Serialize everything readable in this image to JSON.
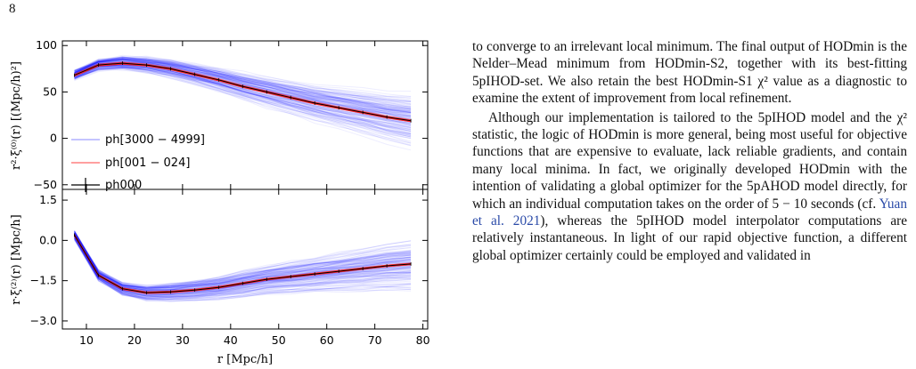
{
  "page": {
    "number": "8"
  },
  "figure": {
    "colors": {
      "mocks": "#0000ff",
      "fiducial": "#ff2020",
      "reference": "#000000"
    },
    "legend": [
      {
        "label": "ph[3000 − 4999]"
      },
      {
        "label": "ph[001 − 024]"
      },
      {
        "label": "ph000"
      }
    ],
    "chart_data": [
      {
        "type": "line",
        "ylabel": "r²·ξ⁽⁰⁾(r) [(Mpc/h)²]",
        "xlim": [
          5,
          81
        ],
        "ylim": [
          -55,
          105
        ],
        "yticks": [
          -50,
          0,
          50,
          100
        ],
        "x": [
          7.5,
          12.5,
          17.5,
          22.5,
          27.5,
          32.5,
          37.5,
          42.5,
          47.5,
          52.5,
          57.5,
          62.5,
          67.5,
          72.5,
          77.5
        ],
        "series": [
          {
            "name": "ph000",
            "values": [
              68,
              79,
              81,
              79,
              75,
              69,
              63,
              56,
              50,
              44,
              38,
              33,
              28,
              23,
              19
            ]
          }
        ]
      },
      {
        "type": "line",
        "xlabel": "r [Mpc/h]",
        "ylabel": "r·ξ⁽²⁾(r) [Mpc/h]",
        "xlim": [
          5,
          81
        ],
        "ylim": [
          -3.3,
          1.9
        ],
        "xticks": [
          10,
          20,
          30,
          40,
          50,
          60,
          70,
          80
        ],
        "yticks": [
          -3.0,
          -1.5,
          0.0,
          1.5
        ],
        "ytick_labels": [
          "−3.0",
          "−1.5",
          "0.0",
          "1.5"
        ],
        "x": [
          7.5,
          12.5,
          17.5,
          22.5,
          27.5,
          32.5,
          37.5,
          42.5,
          47.5,
          52.5,
          57.5,
          62.5,
          67.5,
          72.5,
          77.5
        ],
        "series": [
          {
            "name": "ph000",
            "values": [
              0.2,
              -1.3,
              -1.8,
              -1.95,
              -1.92,
              -1.85,
              -1.75,
              -1.6,
              -1.45,
              -1.35,
              -1.25,
              -1.15,
              -1.05,
              -0.95,
              -0.88
            ]
          }
        ]
      }
    ]
  },
  "text": {
    "p1": "to converge to an irrelevant local minimum. The final output of HODmin is the Nelder–Mead minimum from HODmin-S2, together with its best-fitting 5pIHOD-set. We also retain the best HODmin-S1 χ² value as a diagnostic to examine the extent of improvement from local refinement.",
    "p2_a": "Although our implementation is tailored to the 5pIHOD model and the χ² statistic, the logic of HODmin is more general, being most useful for objective functions that are expensive to evaluate, lack reliable gradients, and contain many local minima. In fact, we originally developed HODmin with the intention of validating a global optimizer for the 5pAHOD model directly, for which an individual computation takes on the order of 5 − 10 seconds (cf. ",
    "p2_cite": "Yuan et al. 2021",
    "p2_b": "), whereas the 5pIHOD model interpolator computations are relatively instantaneous. In light of our rapid objective function, a different global optimizer certainly could be employed and validated in"
  }
}
